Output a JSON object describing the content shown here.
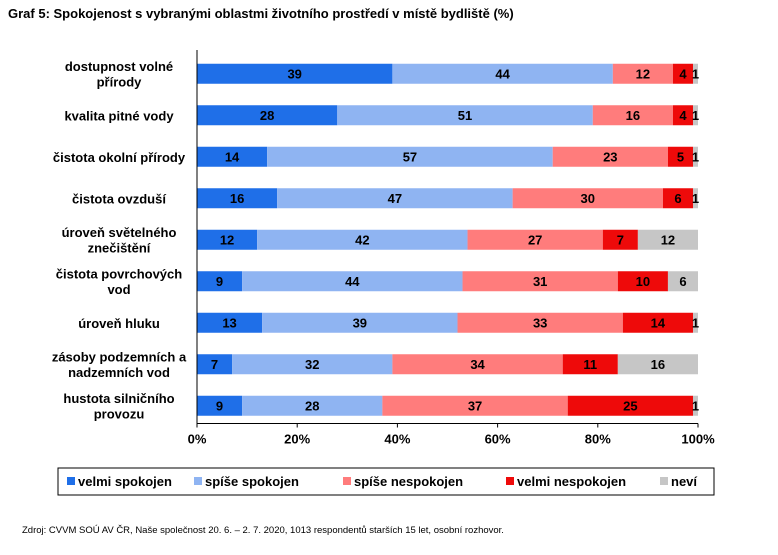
{
  "title": "Graf 5: Spokojenost s vybranými oblastmi životního prostředí v místě bydliště (%)",
  "source": "Zdroj: CVVM SOÚ AV ČR, Naše společnost 20. 6. – 2. 7. 2020, 1013 respondentů starších 15 let, osobní rozhovor.",
  "chart_data": {
    "type": "bar",
    "orientation": "horizontal",
    "stacked": true,
    "percent": true,
    "title": "Graf 5: Spokojenost s vybranými oblastmi životního prostředí v místě bydliště (%)",
    "categories": [
      [
        "dostupnost volné",
        "přírody"
      ],
      [
        "kvalita pitné vody"
      ],
      [
        "čistota okolní přírody"
      ],
      [
        "čistota ovzduší"
      ],
      [
        "úroveň světelného",
        "znečištění"
      ],
      [
        "čistota povrchových",
        "vod"
      ],
      [
        "úroveň hluku"
      ],
      [
        "zásoby podzemních a",
        "nadzemních vod"
      ],
      [
        "hustota silničního",
        "provozu"
      ]
    ],
    "series": [
      {
        "name": "velmi spokojen",
        "color": "#1f6fe8",
        "values": [
          39,
          28,
          14,
          16,
          12,
          9,
          13,
          7,
          9
        ]
      },
      {
        "name": "spíše spokojen",
        "color": "#8fb4f2",
        "values": [
          44,
          51,
          57,
          47,
          42,
          44,
          39,
          32,
          28
        ]
      },
      {
        "name": "spíše nespokojen",
        "color": "#ff7c7c",
        "values": [
          12,
          16,
          23,
          30,
          27,
          31,
          33,
          34,
          37
        ]
      },
      {
        "name": "velmi nespokojen",
        "color": "#ee0a0a",
        "values": [
          4,
          4,
          5,
          6,
          7,
          10,
          14,
          11,
          25
        ]
      },
      {
        "name": "neví",
        "color": "#c6c6c6",
        "values": [
          1,
          1,
          1,
          1,
          12,
          6,
          1,
          16,
          1
        ]
      }
    ],
    "xlim": [
      0,
      100
    ],
    "xticks": [
      "0%",
      "20%",
      "40%",
      "60%",
      "80%",
      "100%"
    ],
    "grid": false,
    "legend_position": "bottom"
  }
}
